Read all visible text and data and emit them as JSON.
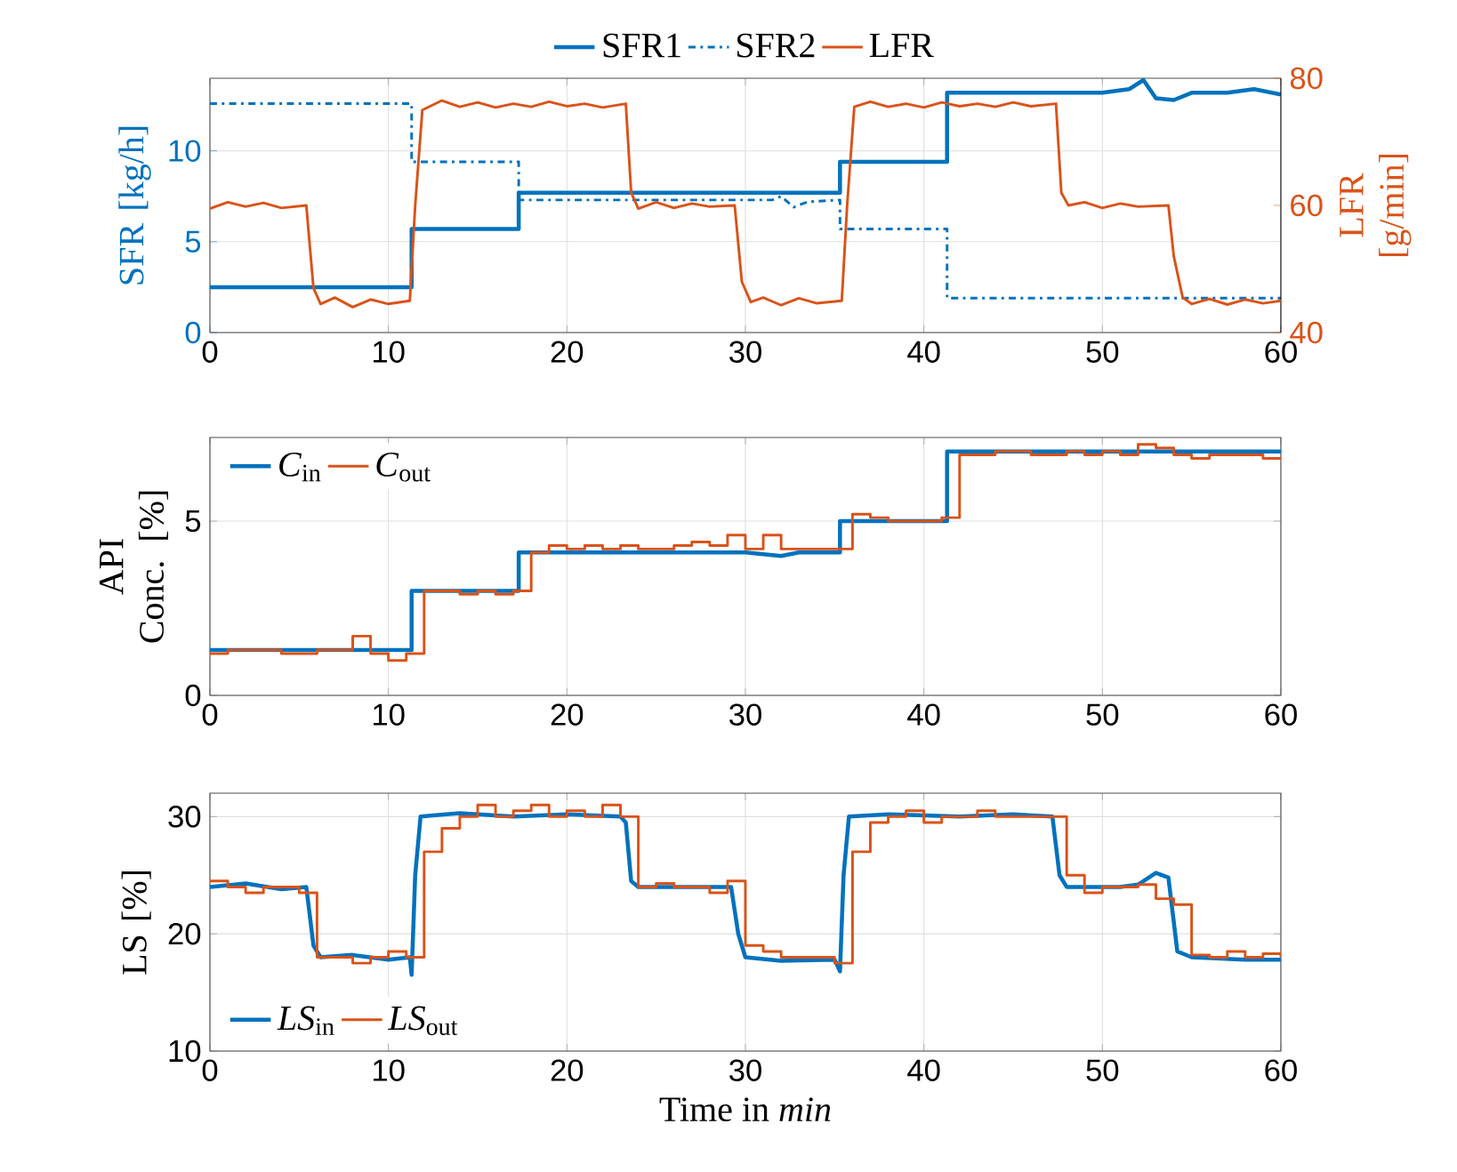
{
  "chart_data": [
    {
      "type": "line",
      "ylabel": "SFR [kg/h]",
      "y2label": "LFR [g/min]",
      "xlim": [
        0,
        60
      ],
      "xticks": [
        0,
        10,
        20,
        30,
        40,
        50,
        60
      ],
      "ylim": [
        0,
        14
      ],
      "yticks": [
        0,
        5,
        10
      ],
      "y2lim": [
        40,
        80
      ],
      "y2ticks": [
        40,
        60,
        80
      ],
      "grid": true,
      "legend": "top",
      "series": [
        {
          "name": "SFR1",
          "color": "#0072bd",
          "line_style": "solid",
          "x": [
            0,
            11.3,
            11.3,
            17.3,
            17.3,
            35.3,
            35.3,
            41.3,
            41.3,
            50,
            51.5,
            52.3,
            53,
            54,
            55,
            57,
            58.5,
            60
          ],
          "values": [
            2.5,
            2.5,
            5.7,
            5.7,
            7.7,
            7.7,
            9.4,
            9.4,
            13.2,
            13.2,
            13.4,
            13.9,
            12.9,
            12.8,
            13.2,
            13.2,
            13.4,
            13.1
          ]
        },
        {
          "name": "SFR2",
          "color": "#0072bd",
          "line_style": "dashdot",
          "x": [
            0,
            11.3,
            11.3,
            17.3,
            17.3,
            31.5,
            32,
            32.7,
            33.5,
            35.3,
            35.3,
            41.3,
            41.3,
            60
          ],
          "values": [
            12.6,
            12.6,
            9.4,
            9.4,
            7.3,
            7.3,
            7.5,
            6.9,
            7.2,
            7.3,
            5.7,
            5.7,
            1.9,
            1.9
          ]
        },
        {
          "name": "LFR",
          "color": "#d95319",
          "line_style": "solid",
          "axis": "y2",
          "x": [
            0,
            1,
            2,
            3,
            4,
            5.4,
            5.8,
            6.2,
            7,
            8,
            9,
            10,
            11.2,
            11.5,
            11.9,
            13,
            14,
            15,
            16,
            17,
            18,
            19,
            20,
            21,
            22,
            23.3,
            23.6,
            24,
            25,
            26,
            27,
            28,
            29.4,
            29.8,
            30.3,
            31,
            32,
            33,
            34,
            35.4,
            35.7,
            36.1,
            37,
            38,
            39,
            40,
            41,
            42,
            43,
            44,
            45,
            46,
            47.4,
            47.7,
            48.1,
            49,
            50,
            51,
            52,
            53.7,
            54,
            54.5,
            55,
            56,
            57,
            58,
            59,
            60
          ],
          "values": [
            59.5,
            60.5,
            59.8,
            60.4,
            59.6,
            60,
            47,
            44.5,
            45.5,
            44,
            45.2,
            44.5,
            45,
            60,
            75,
            76.5,
            75.5,
            76.2,
            75.4,
            76,
            75.5,
            76.3,
            75.6,
            76,
            75.4,
            76,
            62,
            59.5,
            60.5,
            59.6,
            60.3,
            59.8,
            60,
            48,
            44.8,
            45.5,
            44.3,
            45.4,
            44.6,
            45,
            60,
            75.5,
            76.3,
            75.5,
            76,
            75.4,
            76.2,
            75.6,
            76,
            75.5,
            76.2,
            75.6,
            76,
            62,
            60,
            60.5,
            59.6,
            60.3,
            59.8,
            60,
            52,
            45.5,
            44.5,
            45.3,
            44.4,
            45.2,
            44.6,
            45
          ]
        }
      ]
    },
    {
      "type": "line",
      "ylabel": "API Conc. [%]",
      "xlim": [
        0,
        60
      ],
      "xticks": [
        0,
        10,
        20,
        30,
        40,
        50,
        60
      ],
      "ylim": [
        0,
        7.4
      ],
      "yticks": [
        0,
        5
      ],
      "grid": true,
      "legend": "top left",
      "series": [
        {
          "name": "*C*$_{in}$",
          "color": "#0072bd",
          "x": [
            0,
            11.3,
            11.3,
            17.3,
            17.3,
            30,
            32,
            33,
            35.3,
            35.3,
            41.3,
            41.3,
            60
          ],
          "values": [
            1.3,
            1.3,
            3.0,
            3.0,
            4.1,
            4.1,
            4.0,
            4.1,
            4.1,
            5.0,
            5.0,
            7.0,
            7.0
          ]
        },
        {
          "name": "*C*$_{out}$",
          "color": "#d95319",
          "type": "step",
          "x": [
            0,
            1,
            2,
            3,
            4,
            5,
            6,
            7,
            8,
            9,
            10,
            11,
            12,
            13,
            14,
            15,
            16,
            17,
            18,
            19,
            20,
            21,
            22,
            23,
            24,
            25,
            26,
            27,
            28,
            29,
            30,
            31,
            32,
            33,
            34,
            35,
            36,
            37,
            38,
            39,
            40,
            41,
            42,
            43,
            44,
            45,
            46,
            47,
            48,
            49,
            50,
            51,
            52,
            53,
            54,
            55,
            56,
            57,
            58,
            59,
            60
          ],
          "values": [
            1.2,
            1.3,
            1.3,
            1.3,
            1.2,
            1.2,
            1.3,
            1.3,
            1.7,
            1.2,
            1.0,
            1.2,
            3.0,
            3.0,
            2.9,
            3.0,
            2.9,
            3.0,
            4.1,
            4.3,
            4.2,
            4.3,
            4.2,
            4.3,
            4.2,
            4.2,
            4.3,
            4.4,
            4.3,
            4.6,
            4.2,
            4.6,
            4.2,
            4.2,
            4.2,
            4.2,
            5.2,
            5.1,
            5.0,
            5.0,
            5.0,
            5.1,
            6.9,
            6.9,
            7.0,
            7.0,
            6.9,
            6.9,
            7.0,
            6.9,
            7.0,
            6.9,
            7.2,
            7.1,
            6.9,
            6.8,
            6.9,
            6.9,
            6.9,
            6.8,
            6.8
          ]
        }
      ]
    },
    {
      "type": "line",
      "ylabel": "LS [%]",
      "xlabel": "Time in *min*",
      "xlim": [
        0,
        60
      ],
      "xticks": [
        0,
        10,
        20,
        30,
        40,
        50,
        60
      ],
      "ylim": [
        10,
        32
      ],
      "yticks": [
        10,
        20,
        30
      ],
      "grid": true,
      "legend": "bottom left",
      "series": [
        {
          "name": "*LS*$_{in}$",
          "color": "#0072bd",
          "x": [
            0,
            2,
            4,
            5.4,
            5.8,
            6.2,
            8,
            10,
            11.2,
            11.3,
            11.5,
            11.8,
            14,
            17,
            20,
            23,
            23.3,
            23.6,
            24,
            27,
            29.2,
            29.6,
            30,
            32,
            35,
            35.3,
            35.5,
            35.8,
            38,
            42,
            45,
            47.2,
            47.6,
            48,
            51,
            52,
            53,
            53.7,
            54.2,
            55,
            58,
            60
          ],
          "values": [
            24,
            24.3,
            23.8,
            24,
            19,
            18,
            18.2,
            17.8,
            18,
            16.5,
            25,
            30,
            30.3,
            30,
            30.2,
            30,
            29.5,
            24.5,
            24,
            24,
            24,
            20,
            18,
            17.7,
            17.8,
            16.8,
            25,
            30,
            30.2,
            30,
            30.2,
            30,
            25,
            24,
            24,
            24.2,
            25.2,
            24.8,
            18.5,
            18,
            17.8,
            17.8
          ]
        },
        {
          "name": "*LS*$_{out}$",
          "color": "#d95319",
          "type": "step",
          "x": [
            0,
            1,
            2,
            3,
            4,
            5,
            6,
            7,
            8,
            9,
            10,
            11,
            12,
            13,
            14,
            15,
            16,
            17,
            18,
            19,
            20,
            21,
            22,
            23,
            24,
            25,
            26,
            27,
            28,
            29,
            30,
            31,
            32,
            33,
            34,
            35,
            36,
            37,
            38,
            39,
            40,
            41,
            42,
            43,
            44,
            45,
            46,
            47,
            48,
            49,
            50,
            51,
            52,
            53,
            54,
            55,
            56,
            57,
            58,
            59,
            60
          ],
          "values": [
            24.5,
            24,
            23.5,
            24,
            24,
            23.5,
            18,
            18,
            17.5,
            18,
            18.5,
            18,
            27,
            29,
            30,
            31,
            30,
            30.5,
            31,
            30,
            30.5,
            30,
            31,
            30,
            24,
            24.3,
            24,
            24,
            23.5,
            24.5,
            19,
            18.5,
            18,
            18,
            18,
            17.5,
            27,
            29.5,
            30,
            30.5,
            29.5,
            30,
            30,
            30.5,
            30,
            30,
            30,
            30,
            25,
            23.5,
            24,
            24,
            24.2,
            23,
            22.5,
            18.2,
            18,
            18.5,
            18,
            18.3,
            18
          ]
        }
      ]
    }
  ]
}
